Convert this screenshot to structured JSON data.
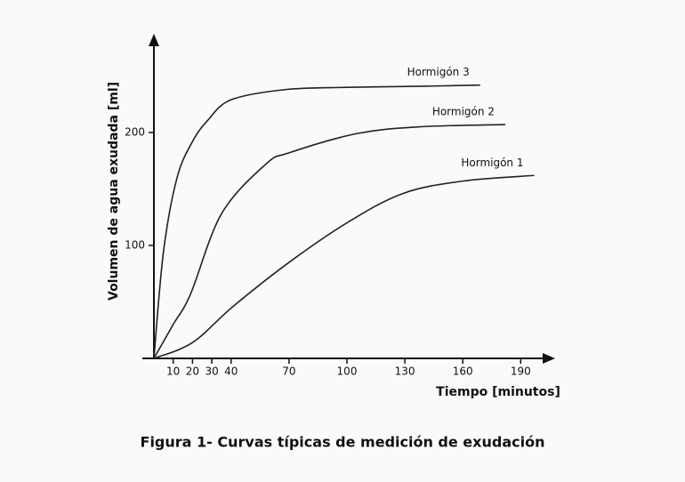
{
  "chart_data": {
    "type": "line",
    "caption": "Figura 1- Curvas típicas de medición de exudación",
    "xlabel": "Tiempo [minutos]",
    "ylabel": "Volumen de agua exudada [ml]",
    "xlim": [
      0,
      204
    ],
    "ylim": [
      0,
      285
    ],
    "xticks": [
      10,
      20,
      30,
      40,
      70,
      100,
      130,
      160,
      190
    ],
    "yticks": [
      100,
      200
    ],
    "grid": false,
    "series": [
      {
        "name": "Hormigón 1",
        "color": "#222222",
        "x": [
          0,
          20,
          41,
          70,
          100,
          129,
          160,
          197
        ],
        "values": [
          0,
          14,
          46,
          85,
          120,
          146,
          157,
          162
        ]
      },
      {
        "name": "Hormigón 2",
        "color": "#222222",
        "x": [
          0,
          10,
          19,
          35,
          58,
          70,
          105,
          137,
          182
        ],
        "values": [
          0,
          30,
          57,
          128,
          172,
          182,
          199,
          205,
          207
        ]
      },
      {
        "name": "Hormigón 3",
        "color": "#222222",
        "x": [
          0,
          5,
          12,
          20,
          28,
          40,
          68,
          100,
          140,
          169
        ],
        "values": [
          0,
          95,
          160,
          192,
          211,
          229,
          238,
          240,
          241,
          242
        ]
      }
    ]
  }
}
